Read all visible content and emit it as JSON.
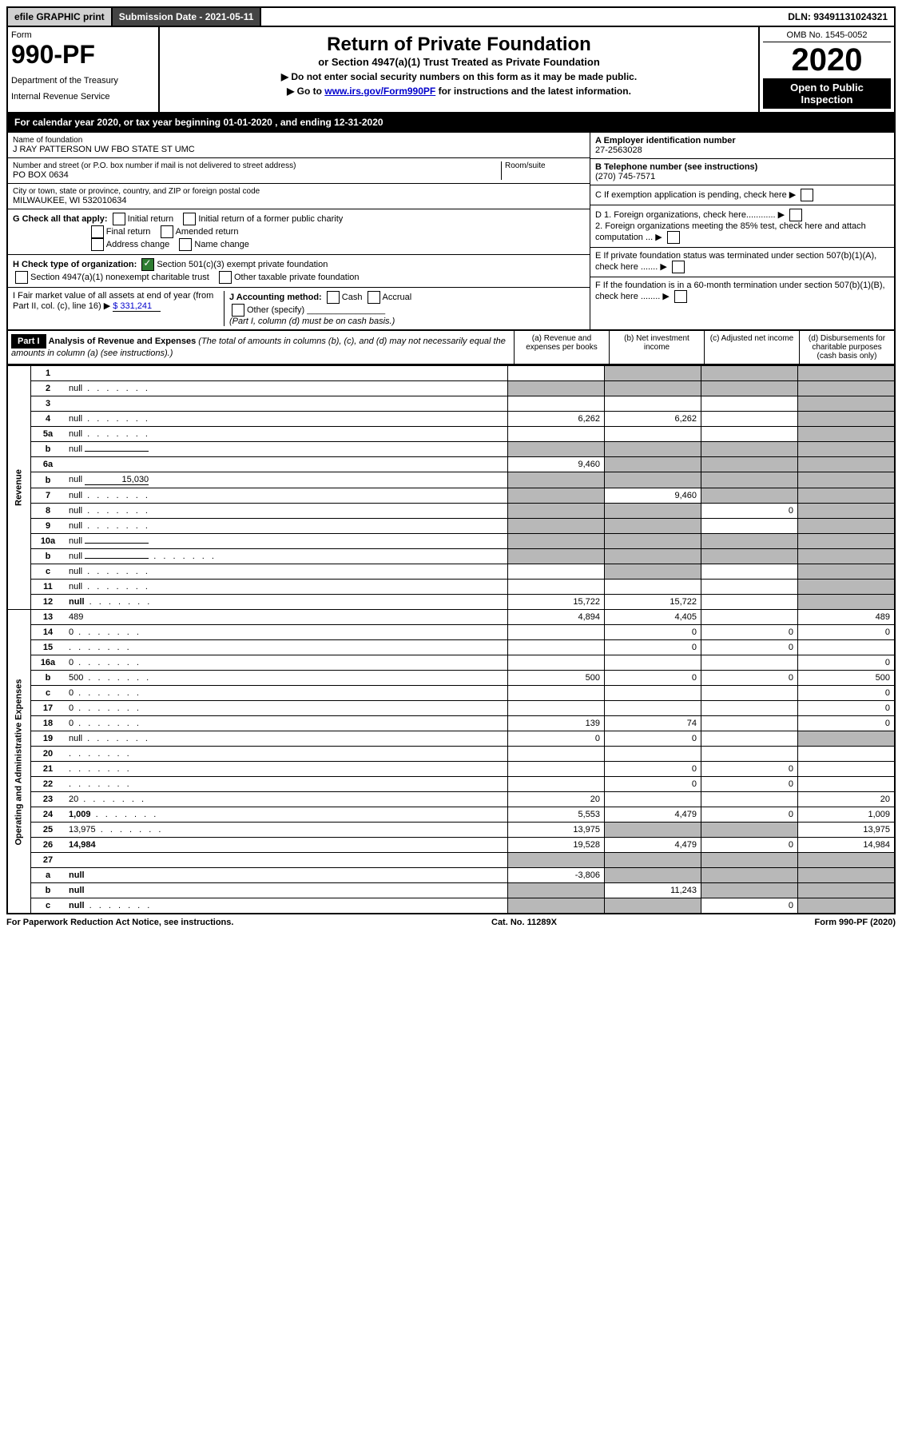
{
  "topbar": {
    "efile": "efile GRAPHIC print",
    "submission": "Submission Date - 2021-05-11",
    "dln": "DLN: 93491131024321"
  },
  "header": {
    "form_label": "Form",
    "form_number": "990-PF",
    "dept1": "Department of the Treasury",
    "dept2": "Internal Revenue Service",
    "title": "Return of Private Foundation",
    "subtitle": "or Section 4947(a)(1) Trust Treated as Private Foundation",
    "instr1": "▶ Do not enter social security numbers on this form as it may be made public.",
    "instr2_pre": "▶ Go to ",
    "instr2_link": "www.irs.gov/Form990PF",
    "instr2_post": " for instructions and the latest information.",
    "omb": "OMB No. 1545-0052",
    "year": "2020",
    "open": "Open to Public Inspection"
  },
  "calyear": "For calendar year 2020, or tax year beginning 01-01-2020            , and ending 12-31-2020",
  "foundation": {
    "name_label": "Name of foundation",
    "name": "J RAY PATTERSON UW FBO STATE ST UMC",
    "addr_label": "Number and street (or P.O. box number if mail is not delivered to street address)",
    "addr": "PO BOX 0634",
    "room_label": "Room/suite",
    "city_label": "City or town, state or province, country, and ZIP or foreign postal code",
    "city": "MILWAUKEE, WI  532010634",
    "ein_label": "A Employer identification number",
    "ein": "27-2563028",
    "tel_label": "B Telephone number (see instructions)",
    "tel": "(270) 745-7571",
    "c_label": "C If exemption application is pending, check here",
    "d1": "D 1. Foreign organizations, check here............",
    "d2": "2. Foreign organizations meeting the 85% test, check here and attach computation ...",
    "e_label": "E  If private foundation status was terminated under section 507(b)(1)(A), check here .......",
    "f_label": "F  If the foundation is in a 60-month termination under section 507(b)(1)(B), check here ........"
  },
  "checks": {
    "g_label": "G Check all that apply:",
    "g_items": [
      "Initial return",
      "Initial return of a former public charity",
      "Final return",
      "Amended return",
      "Address change",
      "Name change"
    ],
    "h_label": "H Check type of organization:",
    "h1": "Section 501(c)(3) exempt private foundation",
    "h2": "Section 4947(a)(1) nonexempt charitable trust",
    "h3": "Other taxable private foundation",
    "i_label": "I Fair market value of all assets at end of year (from Part II, col. (c), line 16)",
    "i_val": "$  331,241",
    "j_label": "J Accounting method:",
    "j_cash": "Cash",
    "j_accrual": "Accrual",
    "j_other": "Other (specify)",
    "j_note": "(Part I, column (d) must be on cash basis.)"
  },
  "part1": {
    "label": "Part I",
    "title": "Analysis of Revenue and Expenses",
    "note": "(The total of amounts in columns (b), (c), and (d) may not necessarily equal the amounts in column (a) (see instructions).)",
    "col_a": "(a)    Revenue and expenses per books",
    "col_b": "(b)   Net investment income",
    "col_c": "(c)   Adjusted net income",
    "col_d": "(d)   Disbursements for charitable purposes (cash basis only)"
  },
  "revenue_label": "Revenue",
  "expenses_label": "Operating and Administrative Expenses",
  "rows": [
    {
      "n": "1",
      "d": null,
      "a": "",
      "b": null,
      "c": null,
      "sb": true,
      "sc": true,
      "sd": true
    },
    {
      "n": "2",
      "d": null,
      "a": null,
      "b": null,
      "c": null,
      "sa": true,
      "sb": true,
      "sc": true,
      "sd": true,
      "dots": true
    },
    {
      "n": "3",
      "d": null,
      "a": "",
      "b": "",
      "c": "",
      "sd": true
    },
    {
      "n": "4",
      "d": null,
      "a": "6,262",
      "b": "6,262",
      "c": "",
      "sd": true,
      "dots": true
    },
    {
      "n": "5a",
      "d": null,
      "a": "",
      "b": "",
      "c": "",
      "sd": true,
      "dots": true
    },
    {
      "n": "b",
      "d": null,
      "a": null,
      "b": null,
      "c": null,
      "sa": true,
      "sb": true,
      "sc": true,
      "sd": true,
      "inline": ""
    },
    {
      "n": "6a",
      "d": null,
      "a": "9,460",
      "b": null,
      "c": null,
      "sb": true,
      "sc": true,
      "sd": true
    },
    {
      "n": "b",
      "d": null,
      "a": null,
      "b": null,
      "c": null,
      "sa": true,
      "sb": true,
      "sc": true,
      "sd": true,
      "inline": "15,030"
    },
    {
      "n": "7",
      "d": null,
      "a": null,
      "b": "9,460",
      "c": null,
      "sa": true,
      "sc": true,
      "sd": true,
      "dots": true
    },
    {
      "n": "8",
      "d": null,
      "a": null,
      "b": null,
      "c": "0",
      "sa": true,
      "sb": true,
      "sd": true,
      "dots": true
    },
    {
      "n": "9",
      "d": null,
      "a": null,
      "b": null,
      "c": "",
      "sa": true,
      "sb": true,
      "sd": true,
      "dots": true
    },
    {
      "n": "10a",
      "d": null,
      "a": null,
      "b": null,
      "c": null,
      "sa": true,
      "sb": true,
      "sc": true,
      "sd": true,
      "inline": ""
    },
    {
      "n": "b",
      "d": null,
      "a": null,
      "b": null,
      "c": null,
      "sa": true,
      "sb": true,
      "sc": true,
      "sd": true,
      "inline": "",
      "dots": true
    },
    {
      "n": "c",
      "d": null,
      "a": "",
      "b": null,
      "c": "",
      "sb": true,
      "sd": true,
      "dots": true
    },
    {
      "n": "11",
      "d": null,
      "a": "",
      "b": "",
      "c": "",
      "sd": true,
      "dots": true
    },
    {
      "n": "12",
      "d": null,
      "a": "15,722",
      "b": "15,722",
      "c": "",
      "sd": true,
      "bold": true,
      "dots": true
    }
  ],
  "exp_rows": [
    {
      "n": "13",
      "d": "489",
      "a": "4,894",
      "b": "4,405",
      "c": ""
    },
    {
      "n": "14",
      "d": "0",
      "a": "",
      "b": "0",
      "c": "0",
      "dots": true
    },
    {
      "n": "15",
      "d": "",
      "a": "",
      "b": "0",
      "c": "0",
      "dots": true
    },
    {
      "n": "16a",
      "d": "0",
      "a": "",
      "b": "",
      "c": "",
      "dots": true
    },
    {
      "n": "b",
      "d": "500",
      "a": "500",
      "b": "0",
      "c": "0",
      "dots": true
    },
    {
      "n": "c",
      "d": "0",
      "a": "",
      "b": "",
      "c": "",
      "dots": true
    },
    {
      "n": "17",
      "d": "0",
      "a": "",
      "b": "",
      "c": "",
      "dots": true
    },
    {
      "n": "18",
      "d": "0",
      "a": "139",
      "b": "74",
      "c": "",
      "dots": true
    },
    {
      "n": "19",
      "d": null,
      "a": "0",
      "b": "0",
      "c": "",
      "sd": true,
      "dots": true
    },
    {
      "n": "20",
      "d": "",
      "a": "",
      "b": "",
      "c": "",
      "dots": true
    },
    {
      "n": "21",
      "d": "",
      "a": "",
      "b": "0",
      "c": "0",
      "dots": true
    },
    {
      "n": "22",
      "d": "",
      "a": "",
      "b": "0",
      "c": "0",
      "dots": true
    },
    {
      "n": "23",
      "d": "20",
      "a": "20",
      "b": "",
      "c": "",
      "dots": true
    },
    {
      "n": "24",
      "d": "1,009",
      "a": "5,553",
      "b": "4,479",
      "c": "0",
      "bold": true,
      "dots": true
    },
    {
      "n": "25",
      "d": "13,975",
      "a": "13,975",
      "b": null,
      "c": null,
      "sb": true,
      "sc": true,
      "dots": true
    },
    {
      "n": "26",
      "d": "14,984",
      "a": "19,528",
      "b": "4,479",
      "c": "0",
      "bold": true
    },
    {
      "n": "27",
      "d": null,
      "a": null,
      "b": null,
      "c": null,
      "sa": true,
      "sb": true,
      "sc": true,
      "sd": true
    },
    {
      "n": "a",
      "d": null,
      "a": "-3,806",
      "b": null,
      "c": null,
      "sb": true,
      "sc": true,
      "sd": true,
      "bold": true
    },
    {
      "n": "b",
      "d": null,
      "a": null,
      "b": "11,243",
      "c": null,
      "sa": true,
      "sc": true,
      "sd": true,
      "bold": true
    },
    {
      "n": "c",
      "d": null,
      "a": null,
      "b": null,
      "c": "0",
      "sa": true,
      "sb": true,
      "sd": true,
      "bold": true,
      "dots": true
    }
  ],
  "footer": {
    "left": "For Paperwork Reduction Act Notice, see instructions.",
    "mid": "Cat. No. 11289X",
    "right": "Form 990-PF (2020)"
  }
}
